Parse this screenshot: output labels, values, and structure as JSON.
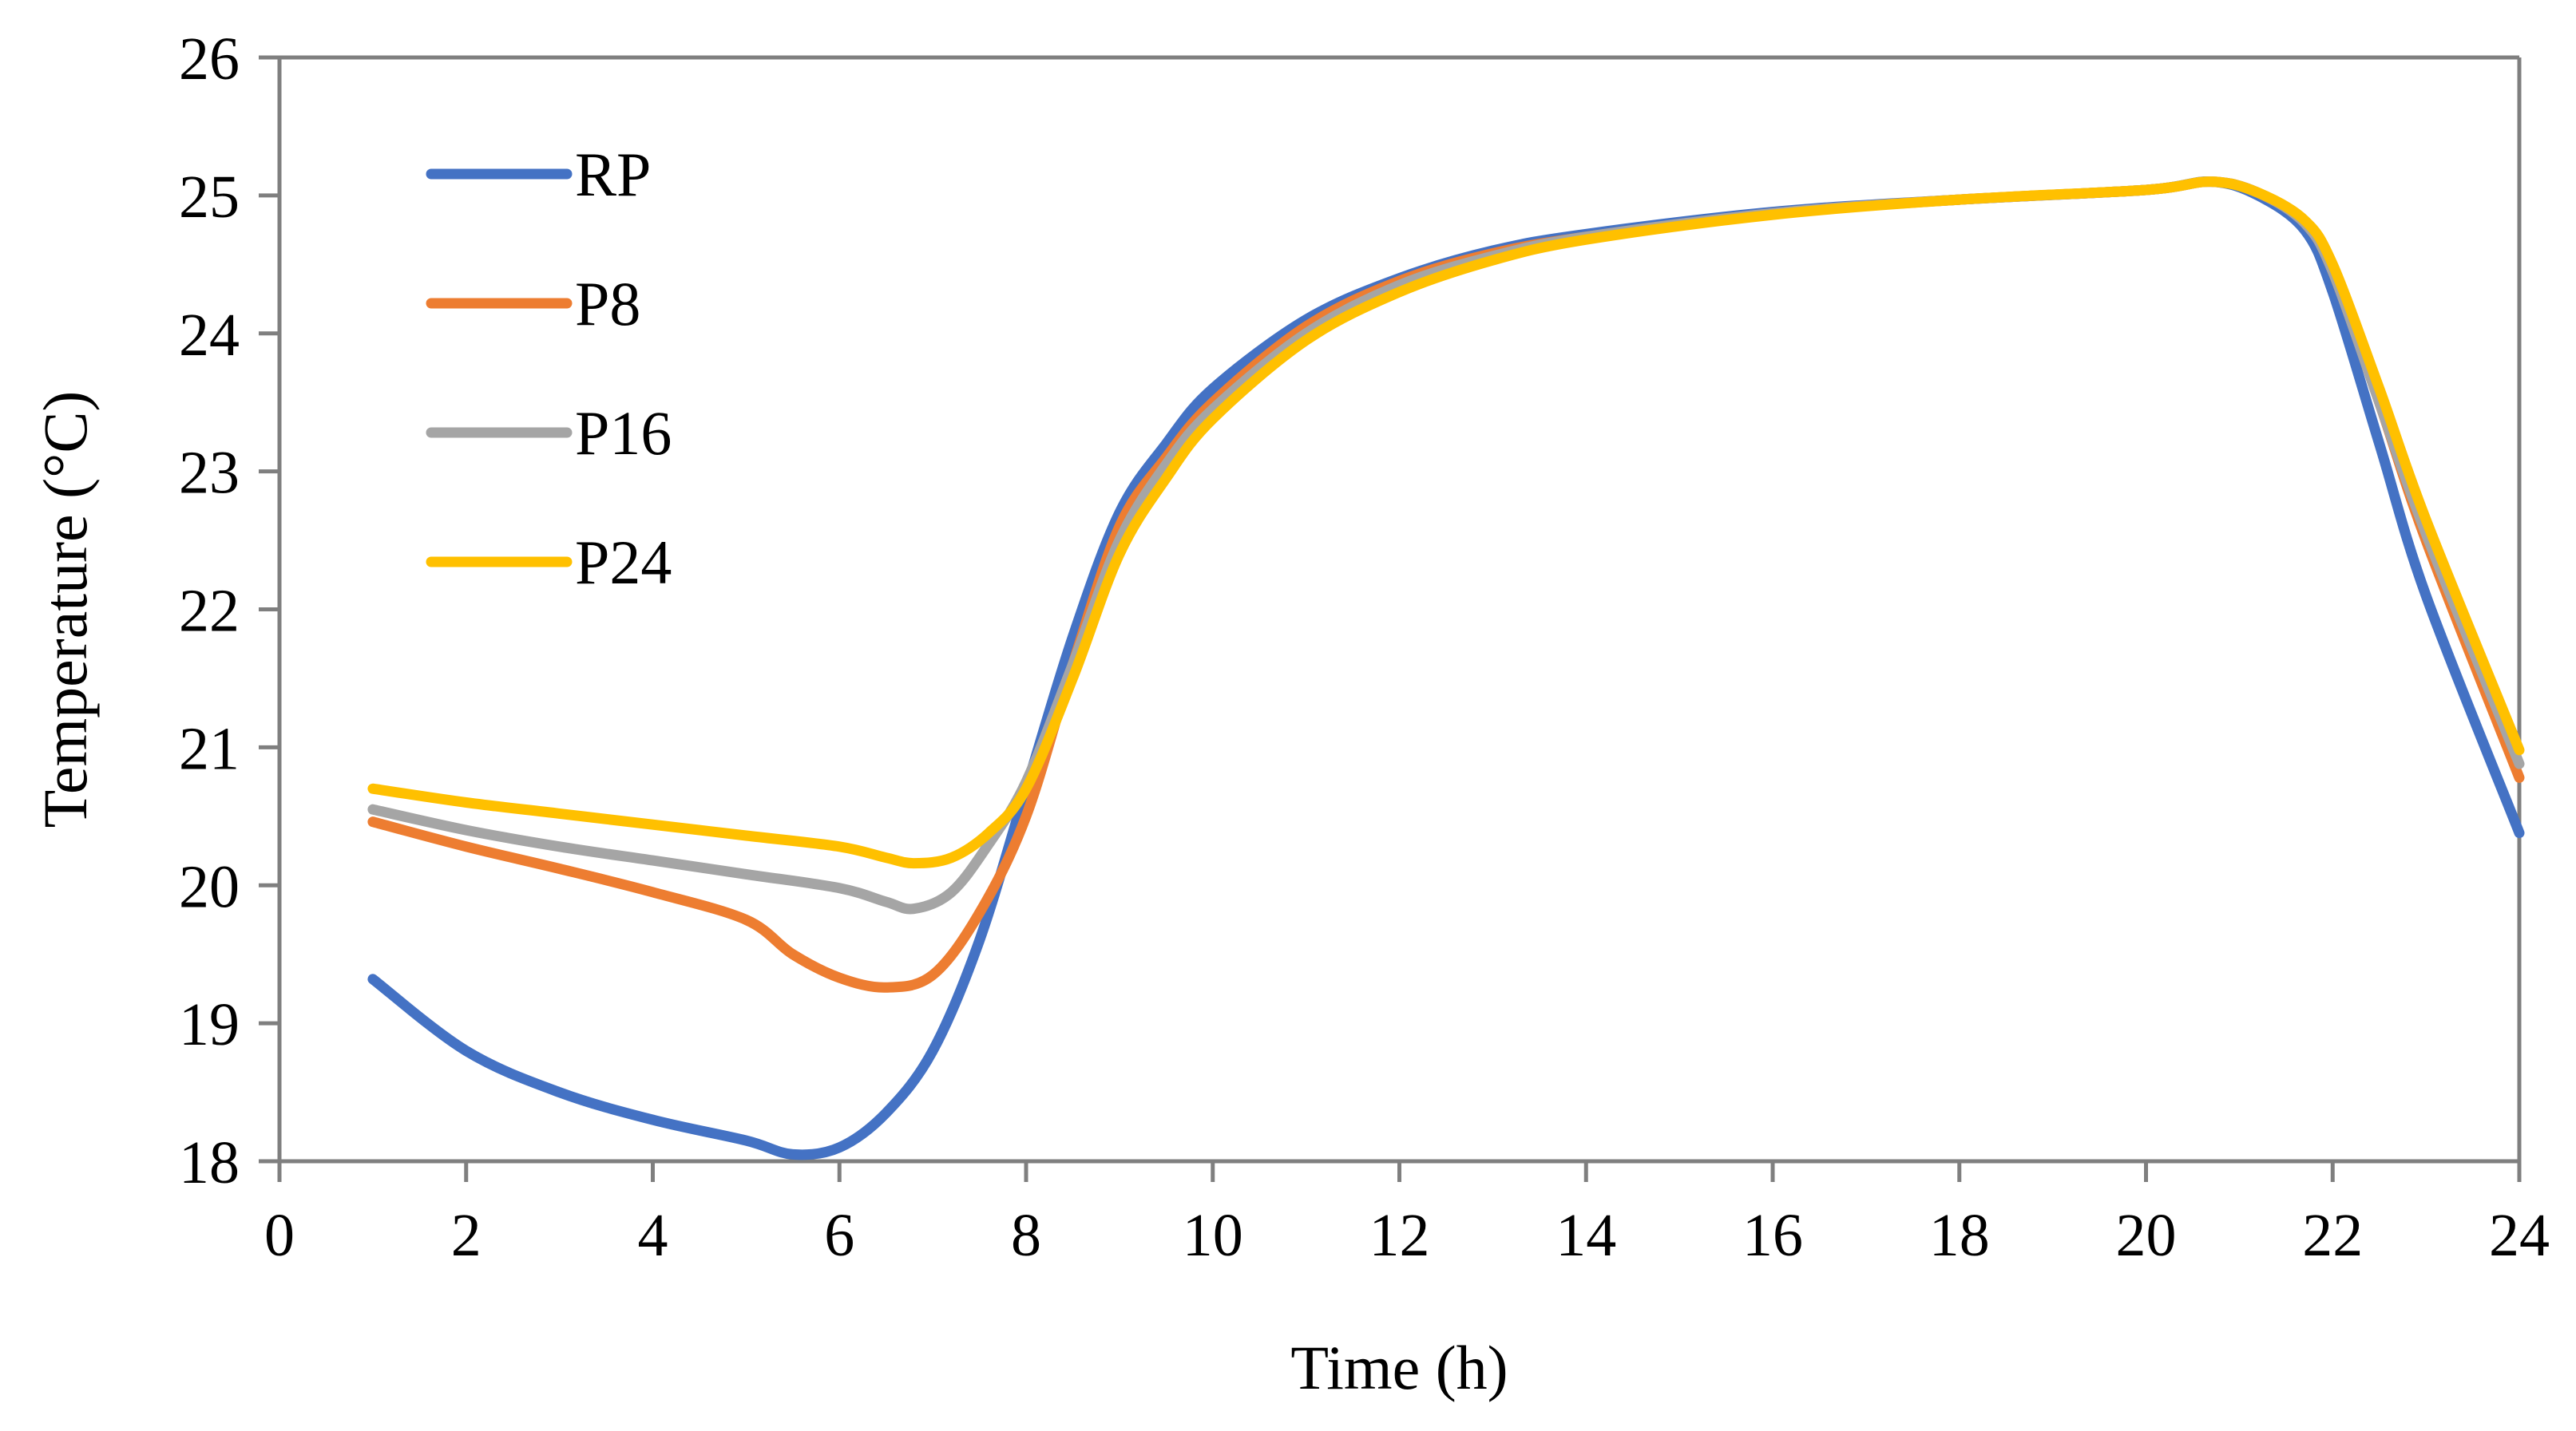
{
  "chart_data": {
    "type": "line",
    "title": "",
    "xlabel": "Time (h)",
    "ylabel": "Temperature (°C)",
    "xlim": [
      0,
      24
    ],
    "ylim": [
      18,
      26
    ],
    "x_ticks": [
      0,
      2,
      4,
      6,
      8,
      10,
      12,
      14,
      16,
      18,
      20,
      22,
      24
    ],
    "y_ticks": [
      18,
      19,
      20,
      21,
      22,
      23,
      24,
      25,
      26
    ],
    "x_tick_labels": [
      "0",
      "2",
      "4",
      "6",
      "8",
      "10",
      "12",
      "14",
      "16",
      "18",
      "20",
      "22",
      "24"
    ],
    "y_tick_labels": [
      "18",
      "19",
      "20",
      "21",
      "22",
      "23",
      "24",
      "25",
      "26"
    ],
    "grid": false,
    "legend_position": "top-left",
    "series": [
      {
        "name": "RP",
        "color": "#4472C4",
        "points": [
          [
            1,
            19.32
          ],
          [
            2,
            18.8
          ],
          [
            3,
            18.5
          ],
          [
            4,
            18.3
          ],
          [
            5,
            18.15
          ],
          [
            5.5,
            18.05
          ],
          [
            6,
            18.1
          ],
          [
            6.5,
            18.35
          ],
          [
            7,
            18.8
          ],
          [
            7.5,
            19.6
          ],
          [
            8,
            20.7
          ],
          [
            8.5,
            21.8
          ],
          [
            9,
            22.7
          ],
          [
            9.5,
            23.2
          ],
          [
            10,
            23.6
          ],
          [
            11,
            24.1
          ],
          [
            12,
            24.4
          ],
          [
            13,
            24.6
          ],
          [
            14,
            24.72
          ],
          [
            16,
            24.88
          ],
          [
            18,
            24.97
          ],
          [
            20,
            25.04
          ],
          [
            20.7,
            25.1
          ],
          [
            21.2,
            25.0
          ],
          [
            21.7,
            24.75
          ],
          [
            22,
            24.3
          ],
          [
            22.5,
            23.2
          ],
          [
            23,
            22.1
          ],
          [
            24,
            20.38
          ]
        ]
      },
      {
        "name": "P8",
        "color": "#ED7D31",
        "points": [
          [
            1,
            20.46
          ],
          [
            2,
            20.28
          ],
          [
            3,
            20.12
          ],
          [
            4,
            19.95
          ],
          [
            5,
            19.75
          ],
          [
            5.5,
            19.5
          ],
          [
            6,
            19.33
          ],
          [
            6.5,
            19.26
          ],
          [
            7,
            19.35
          ],
          [
            7.5,
            19.8
          ],
          [
            8,
            20.5
          ],
          [
            8.5,
            21.6
          ],
          [
            9,
            22.6
          ],
          [
            9.5,
            23.1
          ],
          [
            10,
            23.5
          ],
          [
            11,
            24.05
          ],
          [
            12,
            24.38
          ],
          [
            13,
            24.58
          ],
          [
            14,
            24.7
          ],
          [
            16,
            24.87
          ],
          [
            18,
            24.97
          ],
          [
            20,
            25.04
          ],
          [
            20.7,
            25.1
          ],
          [
            21.2,
            25.02
          ],
          [
            21.7,
            24.8
          ],
          [
            22,
            24.45
          ],
          [
            22.5,
            23.5
          ],
          [
            23,
            22.5
          ],
          [
            24,
            20.78
          ]
        ]
      },
      {
        "name": "P16",
        "color": "#A5A5A5",
        "points": [
          [
            1,
            20.55
          ],
          [
            2,
            20.4
          ],
          [
            3,
            20.28
          ],
          [
            4,
            20.18
          ],
          [
            5,
            20.08
          ],
          [
            6,
            19.98
          ],
          [
            6.5,
            19.88
          ],
          [
            6.8,
            19.83
          ],
          [
            7.2,
            19.95
          ],
          [
            7.6,
            20.3
          ],
          [
            8,
            20.75
          ],
          [
            8.5,
            21.6
          ],
          [
            9,
            22.5
          ],
          [
            9.5,
            23.05
          ],
          [
            10,
            23.45
          ],
          [
            11,
            24.0
          ],
          [
            12,
            24.35
          ],
          [
            13,
            24.56
          ],
          [
            14,
            24.7
          ],
          [
            16,
            24.87
          ],
          [
            18,
            24.97
          ],
          [
            20,
            25.04
          ],
          [
            20.7,
            25.1
          ],
          [
            21.2,
            25.02
          ],
          [
            21.7,
            24.8
          ],
          [
            22,
            24.45
          ],
          [
            22.5,
            23.5
          ],
          [
            23,
            22.55
          ],
          [
            24,
            20.88
          ]
        ]
      },
      {
        "name": "P24",
        "color": "#FFC000",
        "points": [
          [
            1,
            20.7
          ],
          [
            2,
            20.6
          ],
          [
            3,
            20.52
          ],
          [
            4,
            20.44
          ],
          [
            5,
            20.36
          ],
          [
            6,
            20.28
          ],
          [
            6.5,
            20.2
          ],
          [
            6.8,
            20.16
          ],
          [
            7.2,
            20.2
          ],
          [
            7.6,
            20.38
          ],
          [
            8,
            20.7
          ],
          [
            8.5,
            21.5
          ],
          [
            9,
            22.4
          ],
          [
            9.5,
            22.95
          ],
          [
            10,
            23.38
          ],
          [
            11,
            23.95
          ],
          [
            12,
            24.3
          ],
          [
            13,
            24.53
          ],
          [
            14,
            24.68
          ],
          [
            16,
            24.86
          ],
          [
            18,
            24.97
          ],
          [
            20,
            25.04
          ],
          [
            20.7,
            25.1
          ],
          [
            21.2,
            25.02
          ],
          [
            21.7,
            24.82
          ],
          [
            22,
            24.5
          ],
          [
            22.5,
            23.6
          ],
          [
            23,
            22.65
          ],
          [
            24,
            20.98
          ]
        ]
      }
    ]
  }
}
